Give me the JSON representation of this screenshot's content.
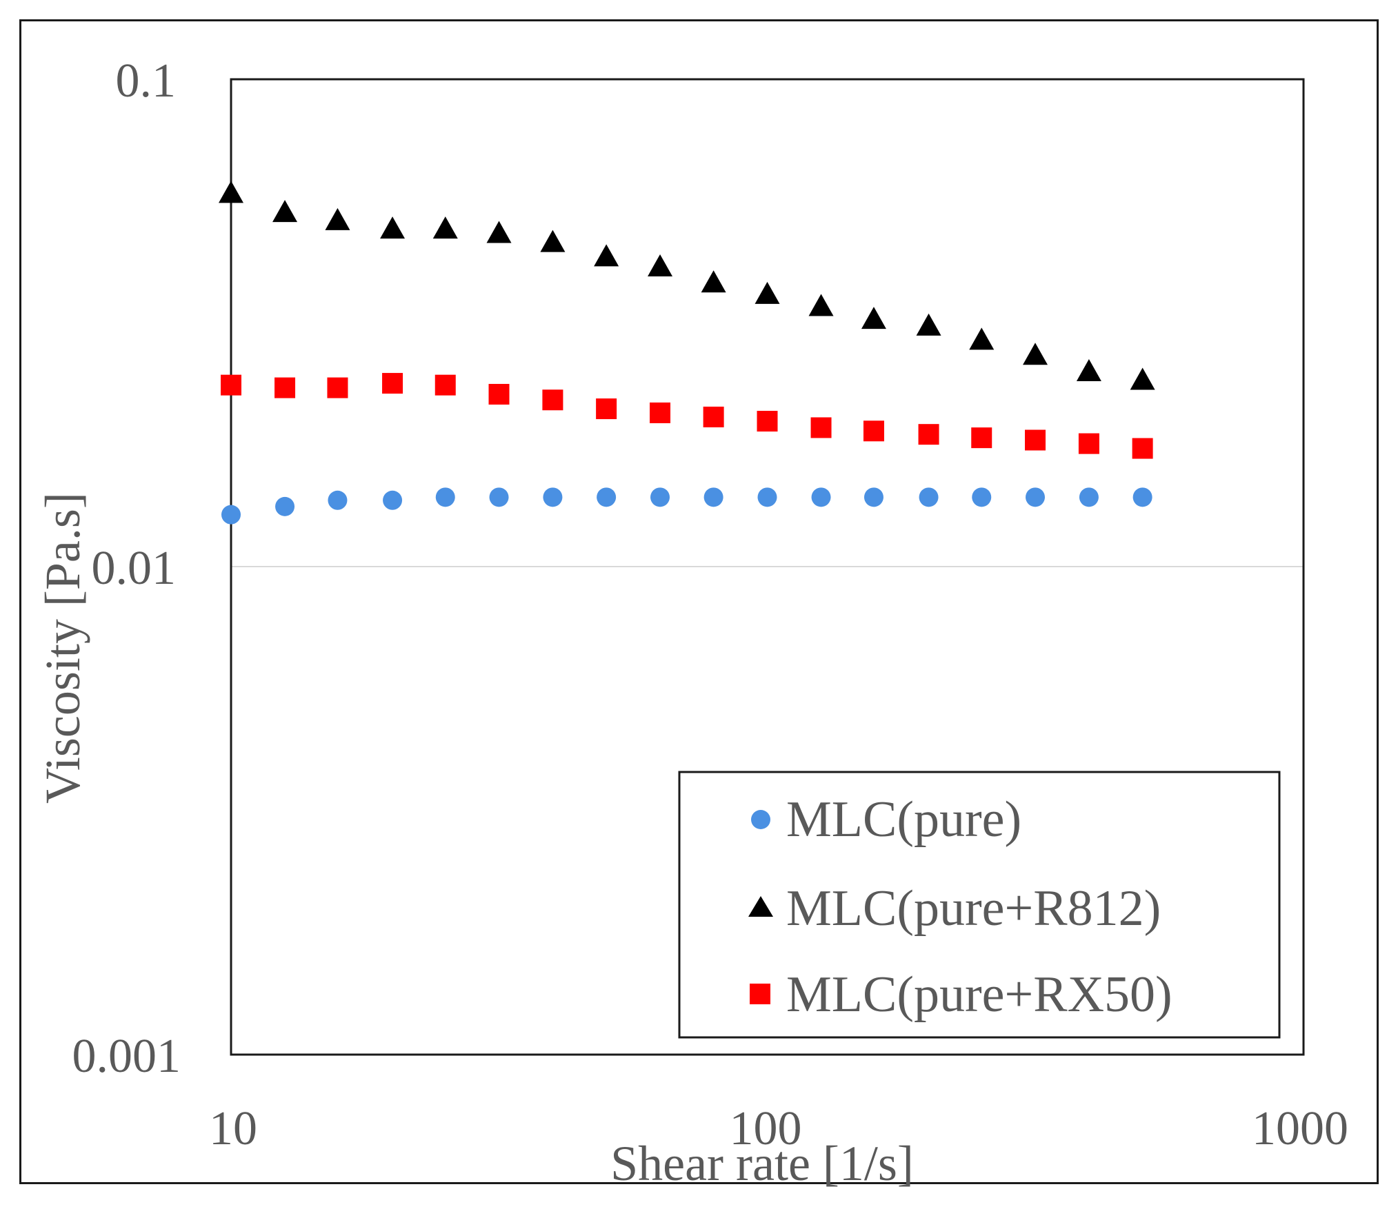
{
  "chart_data": {
    "type": "scatter",
    "title": "",
    "xlabel": "Shear rate [1/s]",
    "ylabel": "Viscosity [Pa.s]",
    "xscale": "log",
    "yscale": "log",
    "xlim": [
      10,
      1000
    ],
    "ylim": [
      0.001,
      0.1
    ],
    "x_ticks": [
      "10",
      "100",
      "1000"
    ],
    "y_ticks": [
      "0.1",
      "0.01",
      "0.001"
    ],
    "gridlines": "horizontal-major",
    "legend_position": "bottom-right",
    "x": [
      10,
      12.6,
      15.8,
      20,
      25.1,
      31.6,
      39.8,
      50.1,
      63.1,
      79.4,
      100,
      126,
      158,
      200,
      251,
      316,
      398,
      501
    ],
    "series": [
      {
        "name": "MLC(pure)",
        "marker": "circle",
        "color": "#4a90e2",
        "values": [
          0.0128,
          0.0133,
          0.0137,
          0.0137,
          0.0139,
          0.0139,
          0.0139,
          0.0139,
          0.0139,
          0.0139,
          0.0139,
          0.0139,
          0.0139,
          0.0139,
          0.0139,
          0.0139,
          0.0139,
          0.0139
        ]
      },
      {
        "name": "MLC(pure+R812)",
        "marker": "triangle",
        "color": "#000000",
        "values": [
          0.058,
          0.053,
          0.051,
          0.049,
          0.049,
          0.048,
          0.046,
          0.043,
          0.041,
          0.038,
          0.036,
          0.034,
          0.032,
          0.031,
          0.029,
          0.027,
          0.025,
          0.024
        ]
      },
      {
        "name": "MLC(pure+RX50)",
        "marker": "square",
        "color": "#ff0000",
        "values": [
          0.0236,
          0.0233,
          0.0233,
          0.0238,
          0.0236,
          0.0226,
          0.022,
          0.0211,
          0.0207,
          0.0203,
          0.0199,
          0.0193,
          0.019,
          0.0187,
          0.0184,
          0.0182,
          0.0179,
          0.0175
        ]
      }
    ]
  }
}
